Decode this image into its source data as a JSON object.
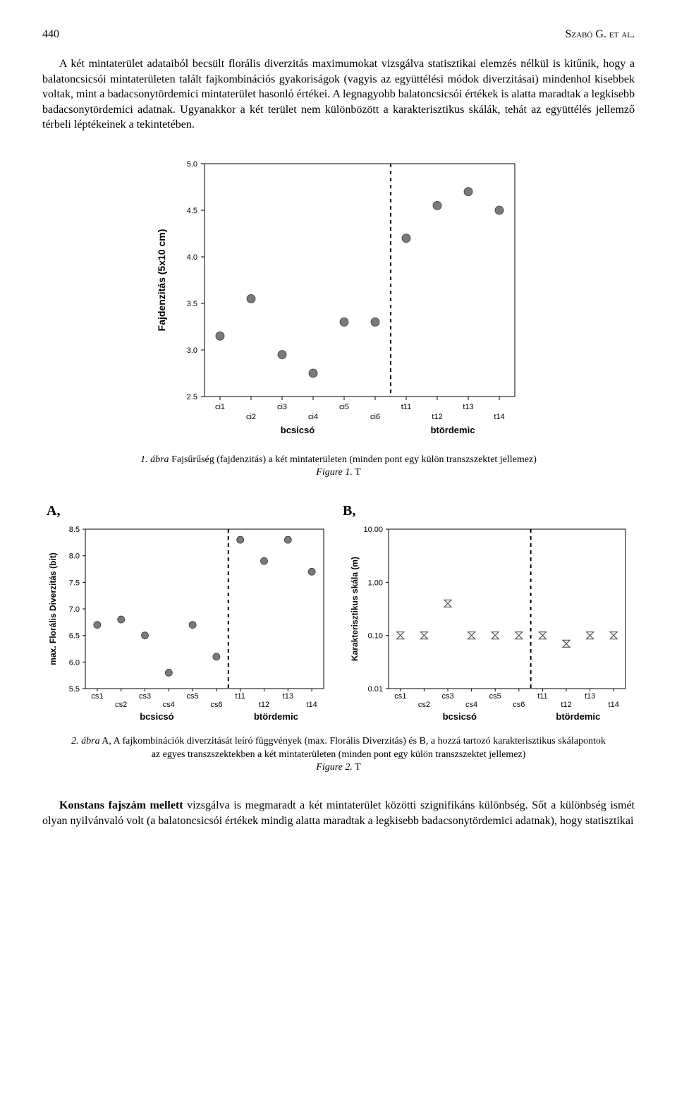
{
  "page_number": "440",
  "author_header": "Szabó G. et al.",
  "paragraph_1": "A két mintaterület adataiból becsült florális diverzitás maximumokat vizsgálva statisztikai elemzés nélkül is kitűnik, hogy a balatoncsicsói mintaterületen talált fajkombinációs gyakoriságok (vagyis az együttélési módok diverzitásai) mindenhol kisebbek voltak, mint a badacsonytördemici mintaterület hasonló értékei. A legnagyobb balatoncsicsói értékek is alatta maradtak a legkisebb badacsonytördemici adatnak. Ugyanakkor a két terület nem különbözött a karakterisztikus skálák, tehát az együttélés jellemző térbeli léptékeinek a tekintetében.",
  "paragraph_2_prefix_bold": "Konstans fajszám mellett",
  "paragraph_2_rest": " vizsgálva is megmaradt a két mintaterület közötti szignifikáns különbség. Sőt a különbség ismét olyan nyilvánvaló volt (a balatoncsicsói értékek mindig alatta maradtak a legkisebb badacsonytördemici adatnak), hogy statisztikai",
  "fig1": {
    "type": "scatter",
    "title": "",
    "y_label": "Fajdenzitás (5x10 cm)",
    "categories": [
      "ci1",
      "ci2",
      "ci3",
      "ci4",
      "ci5",
      "ci6",
      "t11",
      "t12",
      "t13",
      "t14"
    ],
    "group1_label": "bcsicsó",
    "group2_label": "btördemic",
    "divider_after_index": 6,
    "ylim": [
      2.5,
      5.0
    ],
    "ytick_step": 0.5,
    "values": [
      3.15,
      3.55,
      2.95,
      2.75,
      3.3,
      3.3,
      4.2,
      4.55,
      4.7,
      4.5
    ],
    "marker_color": "#7a7a7a",
    "marker_stroke": "#3a3a3a",
    "marker_radius": 6,
    "background": "#ffffff",
    "caption_it": "1. ábra",
    "caption_rest": " Fajsűrűség (fajdenzitás) a két mintaterületen (minden pont egy külön transzszektet jellemez)",
    "caption_line2_it": "Figure 1.",
    "caption_line2_rest": " T"
  },
  "fig2": {
    "panelA": {
      "type": "scatter",
      "label": "A,",
      "y_label": "max. Florális Diverzitás (bit)",
      "categories": [
        "cs1",
        "cs2",
        "cs3",
        "cs4",
        "cs5",
        "cs6",
        "t11",
        "t12",
        "t13",
        "t14"
      ],
      "group1_label": "bcsicsó",
      "group2_label": "btördemic",
      "divider_after_index": 6,
      "ylim": [
        5.5,
        8.5
      ],
      "ytick_step": 0.5,
      "values": [
        6.7,
        6.8,
        6.5,
        5.8,
        6.7,
        6.1,
        8.3,
        7.9,
        8.3,
        7.7
      ],
      "marker_color": "#7a7a7a",
      "marker_radius": 5
    },
    "panelB": {
      "type": "scatter-log",
      "label": "B,",
      "y_label": "Karakterisztikus skála (m)",
      "categories": [
        "cs1",
        "cs2",
        "cs3",
        "cs4",
        "cs5",
        "cs6",
        "t11",
        "t12",
        "t13",
        "t14"
      ],
      "group1_label": "bcsicsó",
      "group2_label": "btördemic",
      "divider_after_index": 6,
      "ylim_log": [
        0.01,
        10.0
      ],
      "yticks": [
        0.01,
        0.1,
        1.0,
        10.0
      ],
      "ytick_labels": [
        "0.01",
        "0.10",
        "1.00",
        "10.00"
      ],
      "values": [
        0.1,
        0.1,
        0.4,
        0.1,
        0.1,
        0.1,
        0.1,
        0.07,
        0.1,
        0.1
      ],
      "marker": "hourglass",
      "marker_color": "#666666"
    },
    "caption_it": "2. ábra",
    "caption_rest": " A, A fajkombinációk diverzitását leíró függvények (max. Florális Diverzitás) és B, a hozzá tartozó karakterisztikus skálapontok az egyes transzszektekben a két mintaterületen (minden pont egy külön transzszektet jellemez)",
    "caption_line2_it": "Figure 2.",
    "caption_line2_rest": " T"
  }
}
